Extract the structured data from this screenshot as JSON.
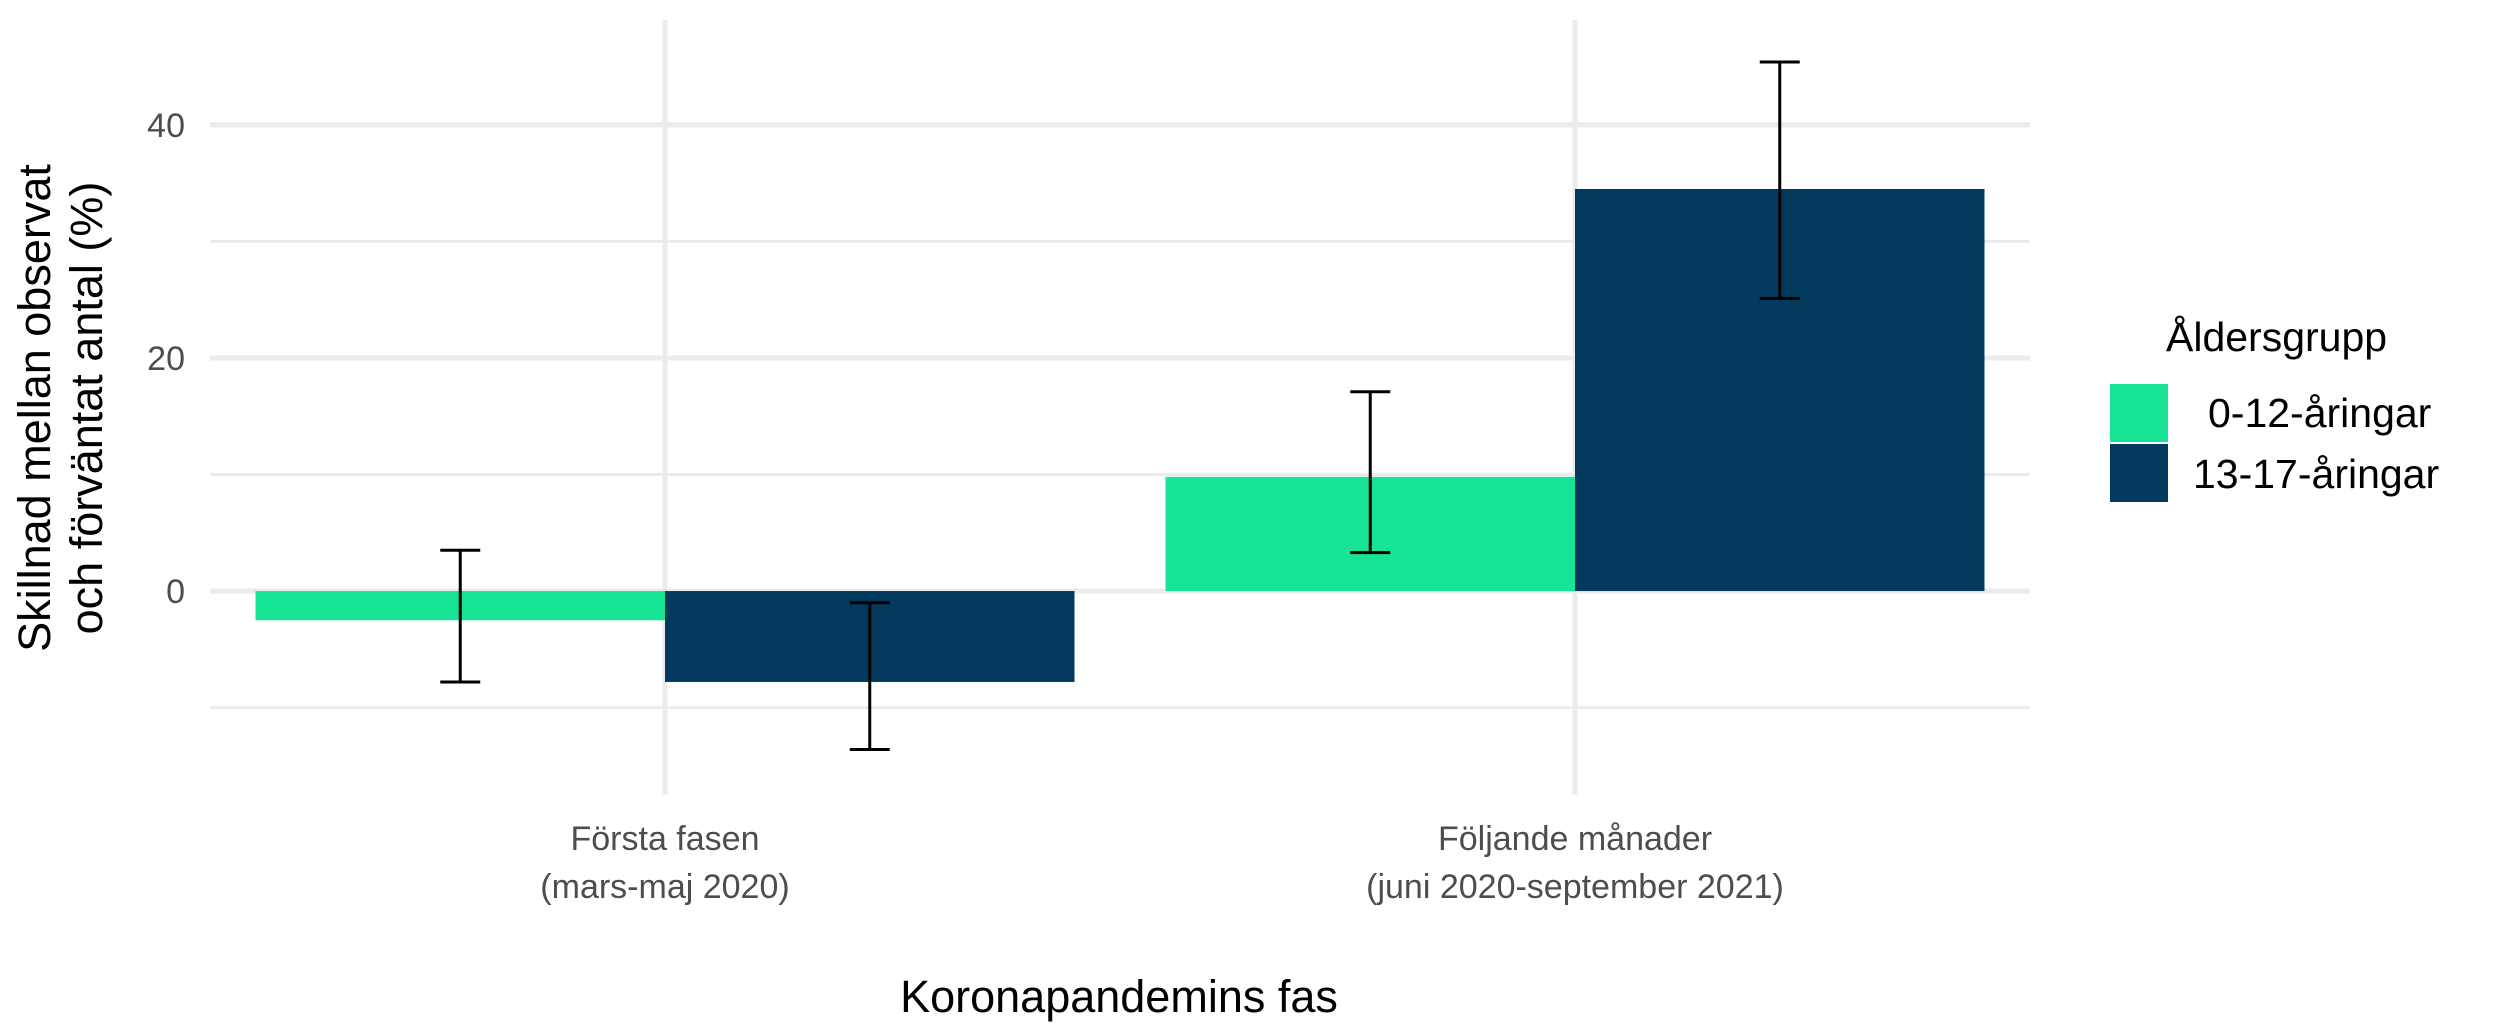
{
  "chart_data": {
    "type": "bar",
    "categories": [
      [
        "Första fasen",
        "(mars-maj 2020)"
      ],
      [
        "Följande månader",
        "(juni 2020-september 2021)"
      ]
    ],
    "series": [
      {
        "name": "0-12-åringar",
        "color": "#17E595",
        "values": [
          -2.5,
          9.8
        ],
        "error_low": [
          -7.8,
          3.3
        ],
        "error_high": [
          3.5,
          17.1
        ]
      },
      {
        "name": "13-17-åringar",
        "color": "#03395C",
        "values": [
          -7.8,
          34.5
        ],
        "error_low": [
          -13.6,
          25.1
        ],
        "error_high": [
          -1.0,
          45.4
        ]
      }
    ],
    "xlabel": "Koronapandemins fas",
    "ylabel": [
      "Skillnad mellan observat",
      "och förväntat antal (%)"
    ],
    "ylim": [
      -17.5,
      49
    ],
    "yticks": [
      0,
      20,
      40
    ],
    "legend": {
      "title": "Åldersgrupp",
      "position": "right"
    },
    "grid": true
  }
}
